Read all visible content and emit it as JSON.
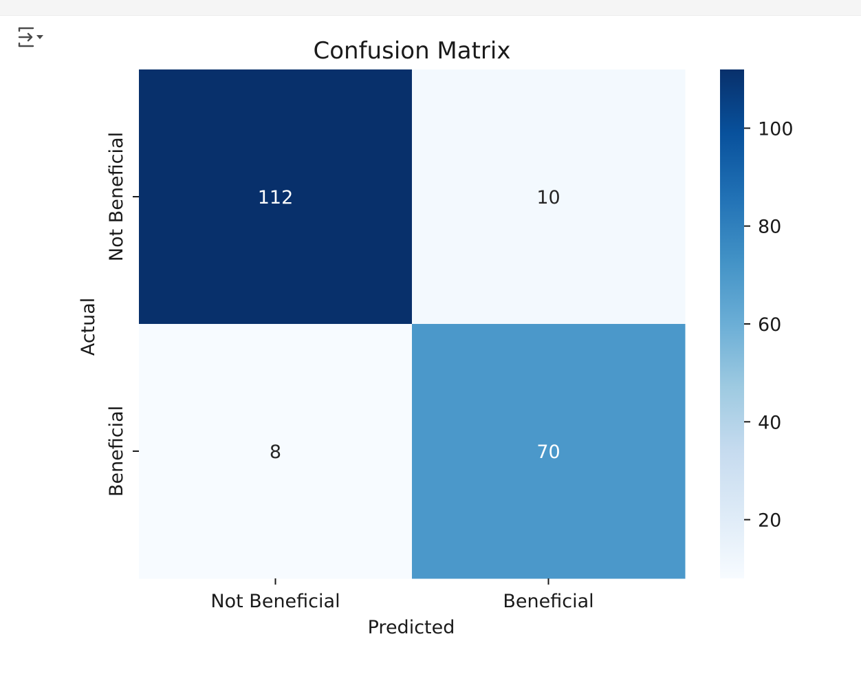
{
  "toolbar": {
    "toggle_icon": "collapse-output-icon"
  },
  "chart_data": {
    "type": "heatmap",
    "title": "Confusion Matrix",
    "xlabel": "Predicted",
    "ylabel": "Actual",
    "x_categories": [
      "Not Beneficial",
      "Beneficial"
    ],
    "y_categories": [
      "Not Beneficial",
      "Beneficial"
    ],
    "values": [
      [
        112,
        10
      ],
      [
        8,
        70
      ]
    ],
    "colormap": "Blues",
    "colorbar": {
      "range": [
        8,
        112
      ],
      "ticks": [
        20,
        40,
        60,
        80,
        100
      ]
    },
    "grid": false
  }
}
